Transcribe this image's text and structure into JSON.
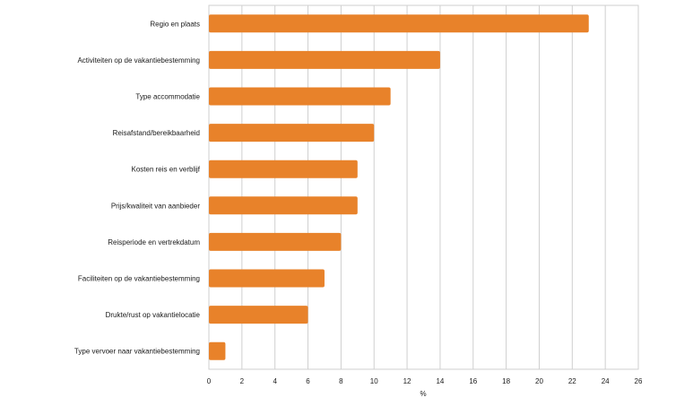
{
  "chart_data": {
    "type": "bar",
    "orientation": "horizontal",
    "categories": [
      "Regio en plaats",
      "Activiteiten op de vakantiebestemming",
      "Type accommodatie",
      "Reisafstand/bereikbaarheid",
      "Kosten reis en verblijf",
      "Prijs/kwaliteit van aanbieder",
      "Reisperiode en vertrekdatum",
      "Faciliteiten op de vakantiebestemming",
      "Drukte/rust op vakantielocatie",
      "Type vervoer naar vakantiebestemming"
    ],
    "values": [
      23,
      14,
      11,
      10,
      9,
      9,
      8,
      7,
      6,
      1
    ],
    "xlabel": "%",
    "ylabel": "",
    "xlim": [
      0,
      26
    ],
    "xticks": [
      "0",
      "2",
      "4",
      "6",
      "8",
      "10",
      "12",
      "14",
      "16",
      "18",
      "20",
      "22",
      "24",
      "26"
    ],
    "grid": "vertical",
    "bar_color": "#e8822a",
    "grid_color": "#cfcfcf"
  }
}
